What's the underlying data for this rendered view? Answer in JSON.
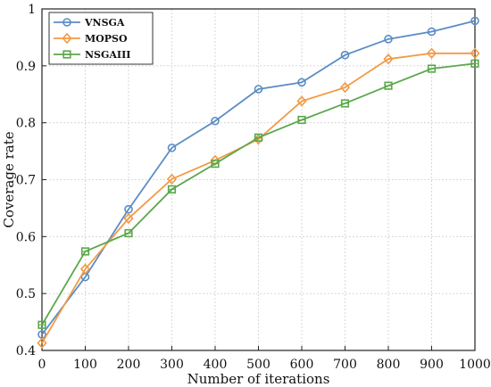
{
  "chart_data": {
    "type": "line",
    "xlabel": "Number of iterations",
    "ylabel": "Coverage rate",
    "xlim": [
      0,
      1000
    ],
    "ylim": [
      0.4,
      1
    ],
    "xticks": [
      0,
      100,
      200,
      300,
      400,
      500,
      600,
      700,
      800,
      900,
      1000
    ],
    "yticks": [
      0.4,
      0.5,
      0.6,
      0.7,
      0.8,
      0.9,
      1
    ],
    "xtick_labels": [
      "0",
      "100",
      "200",
      "300",
      "400",
      "500",
      "600",
      "700",
      "800",
      "900",
      "1000"
    ],
    "ytick_labels": [
      "0.4",
      "0.5",
      "0.6",
      "0.7",
      "0.8",
      "0.9",
      "1"
    ],
    "grid": true,
    "legend_position": "top-left",
    "x": [
      0,
      100,
      200,
      300,
      400,
      500,
      600,
      700,
      800,
      900,
      1000
    ],
    "series": [
      {
        "name": "VNSGA",
        "color": "#5b8cc6",
        "marker": "circle",
        "values": [
          0.428,
          0.529,
          0.648,
          0.756,
          0.803,
          0.859,
          0.871,
          0.919,
          0.947,
          0.96,
          0.979
        ]
      },
      {
        "name": "MOPSO",
        "color": "#f29a44",
        "marker": "diamond",
        "values": [
          0.413,
          0.543,
          0.632,
          0.701,
          0.734,
          0.771,
          0.838,
          0.862,
          0.912,
          0.922,
          0.922
        ]
      },
      {
        "name": "NSGAIII",
        "color": "#5aa84a",
        "marker": "square",
        "values": [
          0.445,
          0.574,
          0.606,
          0.683,
          0.728,
          0.774,
          0.805,
          0.834,
          0.865,
          0.895,
          0.904
        ]
      }
    ]
  }
}
